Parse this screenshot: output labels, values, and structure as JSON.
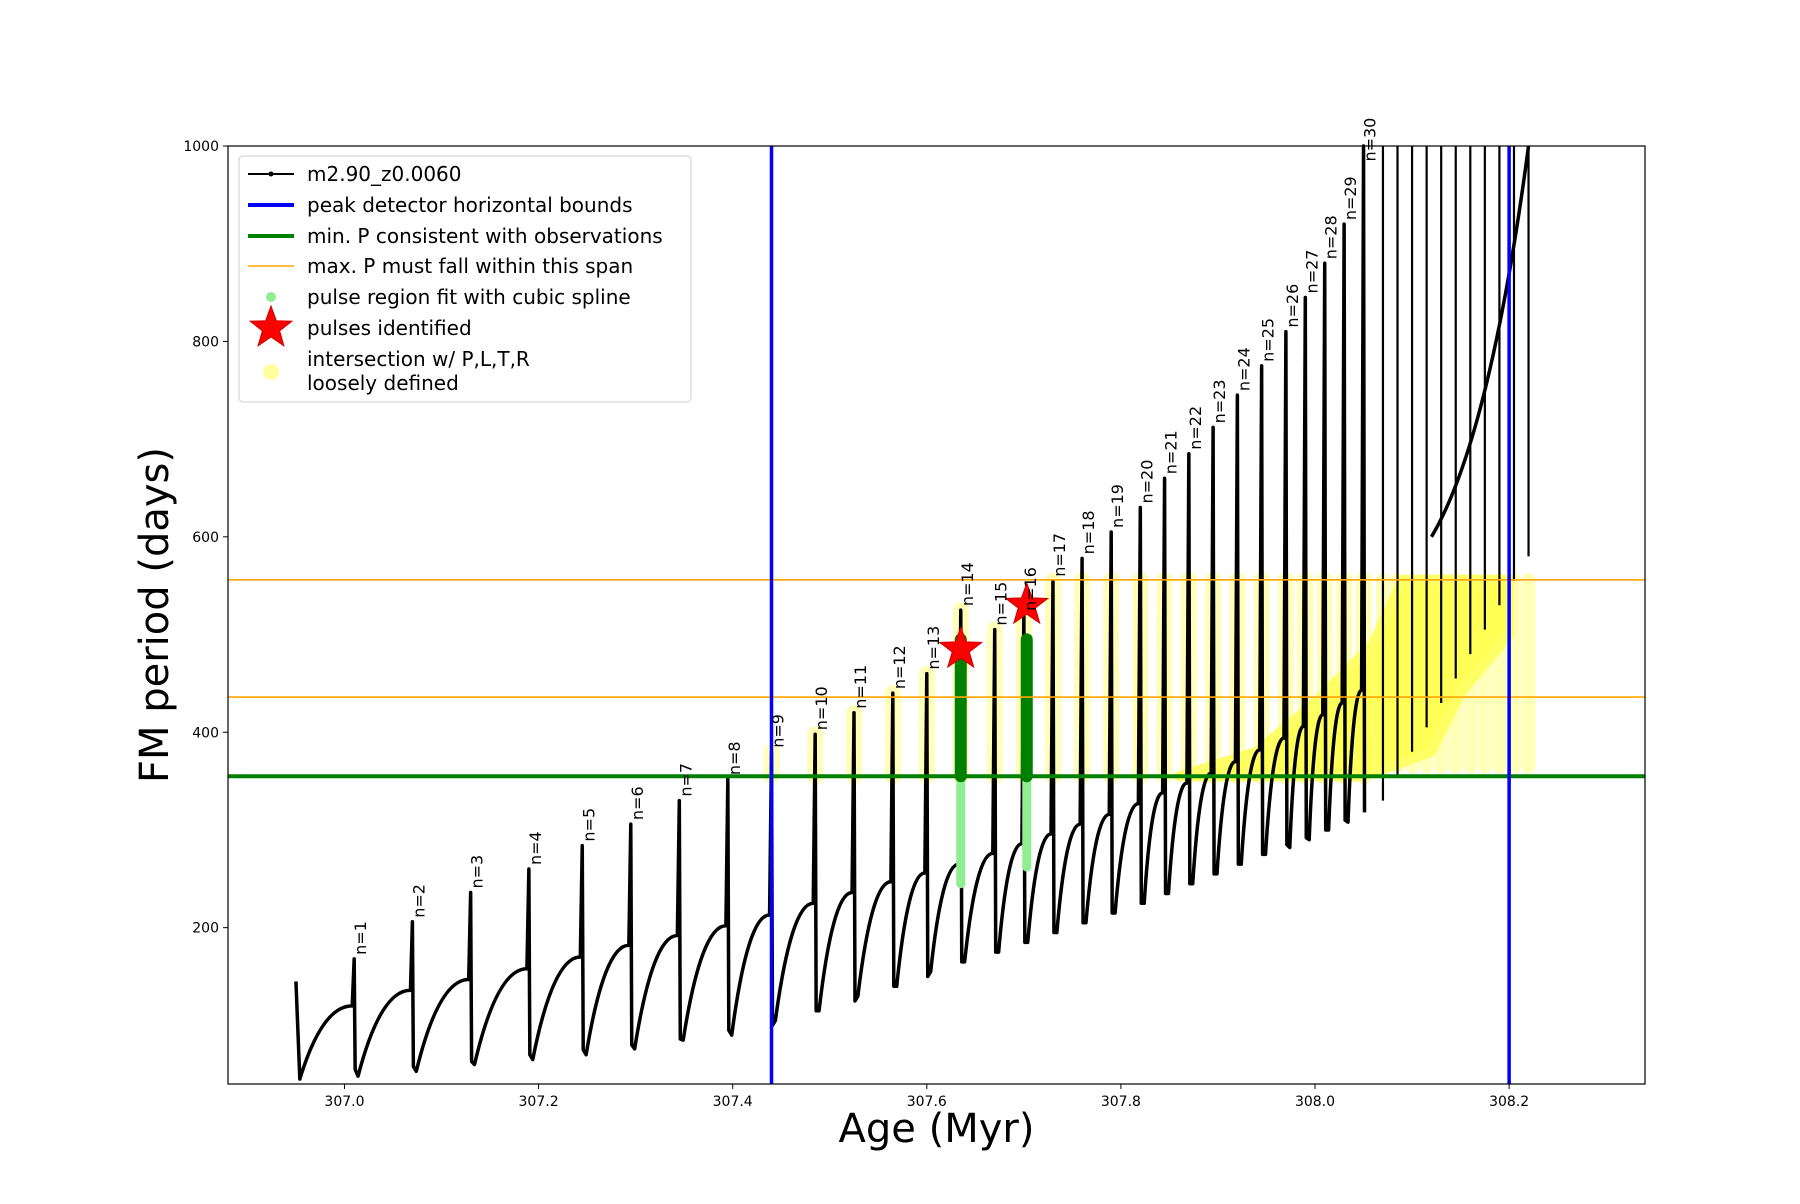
{
  "chart_data": {
    "type": "scatter",
    "xlabel": "Age (Myr)",
    "ylabel": "FM period (days)",
    "xlim": [
      306.88,
      308.34
    ],
    "ylim": [
      40,
      1000
    ],
    "x_ticks": [
      "307.0",
      "307.2",
      "307.4",
      "307.6",
      "307.8",
      "308.0",
      "308.2"
    ],
    "y_ticks": [
      "200",
      "400",
      "600",
      "800",
      "1000"
    ],
    "grid": false,
    "legend_position": "upper-left",
    "legend": [
      {
        "label": "m2.90_z0.0060",
        "marker": "line-dot",
        "color": "#000000"
      },
      {
        "label": "peak detector horizontal bounds",
        "marker": "line",
        "color": "#0000ff"
      },
      {
        "label": "min. P consistent with observations",
        "marker": "line",
        "color": "#008000"
      },
      {
        "label": "max. P must fall within this span",
        "marker": "line",
        "color": "#ffa500"
      },
      {
        "label": "pulse region fit with cubic spline",
        "marker": "dot",
        "color": "#90ee90"
      },
      {
        "label": "pulses identified",
        "marker": "star",
        "color": "#ff0000"
      },
      {
        "label": "intersection w/ P,L,T,R",
        "label2": "loosely defined",
        "marker": "circle",
        "color": "#ffffa0"
      }
    ],
    "vertical_lines": [
      307.44,
      308.2
    ],
    "min_period_line": 355,
    "max_period_span": [
      436,
      556
    ],
    "pulses": [
      {
        "label": "n=1",
        "age": 307.01,
        "peak": 168,
        "min": 55,
        "pre": 120
      },
      {
        "label": "n=2",
        "age": 307.07,
        "peak": 206,
        "min": 58,
        "pre": 136
      },
      {
        "label": "n=3",
        "age": 307.13,
        "peak": 236,
        "min": 63,
        "pre": 147
      },
      {
        "label": "n=4",
        "age": 307.19,
        "peak": 260,
        "min": 70,
        "pre": 158
      },
      {
        "label": "n=5",
        "age": 307.245,
        "peak": 284,
        "min": 75,
        "pre": 170
      },
      {
        "label": "n=6",
        "age": 307.295,
        "peak": 306,
        "min": 80,
        "pre": 182
      },
      {
        "label": "n=7",
        "age": 307.345,
        "peak": 330,
        "min": 86,
        "pre": 192
      },
      {
        "label": "n=8",
        "age": 307.395,
        "peak": 352,
        "min": 95,
        "pre": 202
      },
      {
        "label": "n=9",
        "age": 307.44,
        "peak": 380,
        "min": 100,
        "pre": 213
      },
      {
        "label": "n=10",
        "age": 307.485,
        "peak": 398,
        "min": 115,
        "pre": 225
      },
      {
        "label": "n=11",
        "age": 307.525,
        "peak": 420,
        "min": 125,
        "pre": 236
      },
      {
        "label": "n=12",
        "age": 307.565,
        "peak": 440,
        "min": 140,
        "pre": 247
      },
      {
        "label": "n=13",
        "age": 307.6,
        "peak": 460,
        "min": 150,
        "pre": 256
      },
      {
        "label": "n=14",
        "age": 307.635,
        "peak": 525,
        "min": 165,
        "pre": 265
      },
      {
        "label": "n=15",
        "age": 307.67,
        "peak": 505,
        "min": 175,
        "pre": 276
      },
      {
        "label": "n=16",
        "age": 307.7,
        "peak": 520,
        "min": 185,
        "pre": 286
      },
      {
        "label": "n=17",
        "age": 307.73,
        "peak": 555,
        "min": 195,
        "pre": 296
      },
      {
        "label": "n=18",
        "age": 307.76,
        "peak": 578,
        "min": 205,
        "pre": 306
      },
      {
        "label": "n=19",
        "age": 307.79,
        "peak": 605,
        "min": 215,
        "pre": 316
      },
      {
        "label": "n=20",
        "age": 307.82,
        "peak": 630,
        "min": 225,
        "pre": 327
      },
      {
        "label": "n=21",
        "age": 307.845,
        "peak": 660,
        "min": 235,
        "pre": 338
      },
      {
        "label": "n=22",
        "age": 307.87,
        "peak": 685,
        "min": 245,
        "pre": 348
      },
      {
        "label": "n=23",
        "age": 307.895,
        "peak": 712,
        "min": 255,
        "pre": 358
      },
      {
        "label": "n=24",
        "age": 307.92,
        "peak": 745,
        "min": 265,
        "pre": 370
      },
      {
        "label": "n=25",
        "age": 307.945,
        "peak": 775,
        "min": 275,
        "pre": 382
      },
      {
        "label": "n=26",
        "age": 307.97,
        "peak": 810,
        "min": 285,
        "pre": 394
      },
      {
        "label": "n=27",
        "age": 307.99,
        "peak": 845,
        "min": 292,
        "pre": 406
      },
      {
        "label": "n=28",
        "age": 308.01,
        "peak": 880,
        "min": 300,
        "pre": 418
      },
      {
        "label": "n=29",
        "age": 308.03,
        "peak": 920,
        "min": 310,
        "pre": 430
      },
      {
        "label": "n=30",
        "age": 308.05,
        "peak": 1000,
        "min": 318,
        "pre": 443
      }
    ],
    "late_pulses": [
      308.07,
      308.085,
      308.1,
      308.115,
      308.13,
      308.145,
      308.16,
      308.175,
      308.19,
      308.205,
      308.22
    ],
    "track_start": {
      "age": 306.95,
      "period": 145
    },
    "pulse_fit_columns": [
      {
        "age": 307.635,
        "green_from": 355,
        "green_to": 495,
        "light_from": 245,
        "light_to": 355
      },
      {
        "age": 307.703,
        "green_from": 355,
        "green_to": 495,
        "light_from": 262,
        "light_to": 355
      }
    ],
    "stars": [
      {
        "age": 307.635,
        "period": 485
      },
      {
        "age": 307.703,
        "period": 530
      }
    ]
  }
}
